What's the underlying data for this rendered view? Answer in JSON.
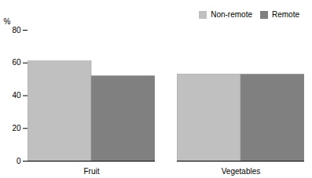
{
  "chart_data": {
    "type": "bar",
    "categories": [
      "Fruit",
      "Vegetables"
    ],
    "series": [
      {
        "name": "Non-remote",
        "color": "#c0c0c0",
        "values": [
          61,
          53
        ]
      },
      {
        "name": "Remote",
        "color": "#808080",
        "values": [
          52,
          53
        ]
      }
    ],
    "ylabel": "%",
    "ylim": [
      0,
      80
    ],
    "yticks": [
      0,
      20,
      40,
      60,
      80
    ],
    "grid": false,
    "legend": "upper right"
  }
}
